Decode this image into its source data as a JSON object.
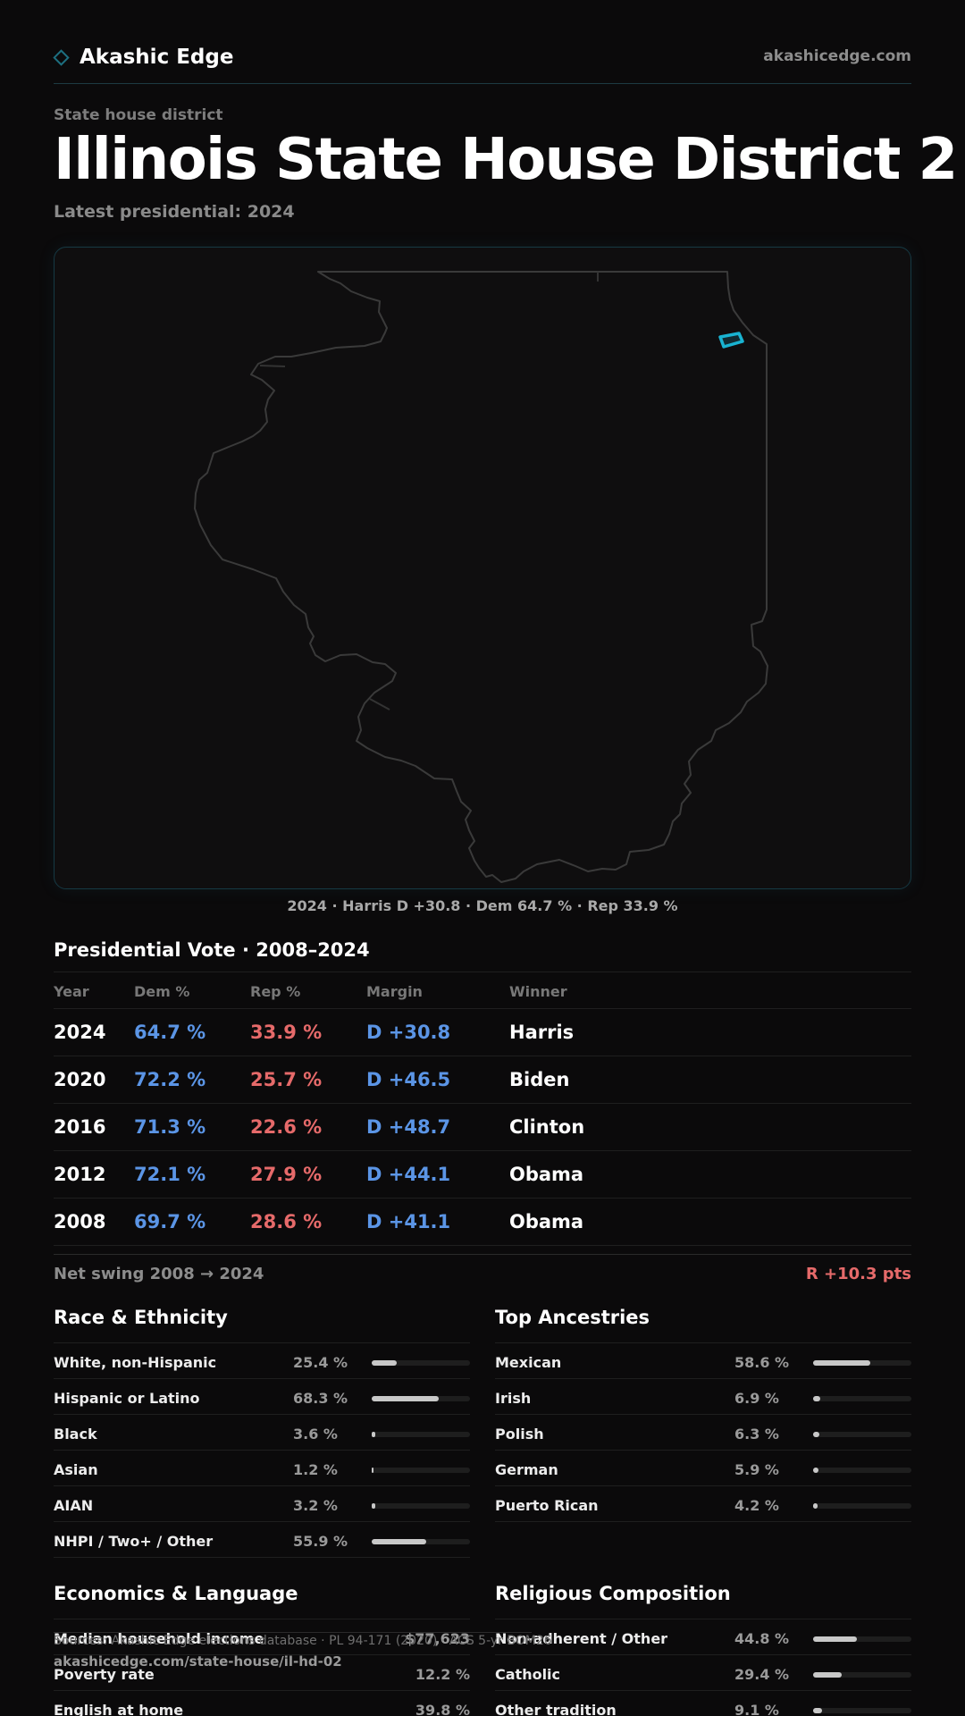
{
  "header": {
    "brand_name": "Akashic Edge",
    "site": "akashicedge.com"
  },
  "page": {
    "eyebrow": "State house district",
    "title": "Illinois State House District 2",
    "subtitle": "Latest presidential: 2024"
  },
  "map": {
    "caption": "2024 · Harris D +30.8 · Dem 64.7 % · Rep 33.9 %",
    "highlight_color": "#19b3d1"
  },
  "presidential": {
    "title": "Presidential Vote · 2008–2024",
    "columns": [
      "Year",
      "Dem %",
      "Rep %",
      "Margin",
      "Winner"
    ],
    "rows": [
      {
        "year": "2024",
        "dem": "64.7 %",
        "rep": "33.9 %",
        "margin": "D +30.8",
        "winner": "Harris"
      },
      {
        "year": "2020",
        "dem": "72.2 %",
        "rep": "25.7 %",
        "margin": "D +46.5",
        "winner": "Biden"
      },
      {
        "year": "2016",
        "dem": "71.3 %",
        "rep": "22.6 %",
        "margin": "D +48.7",
        "winner": "Clinton"
      },
      {
        "year": "2012",
        "dem": "72.1 %",
        "rep": "27.9 %",
        "margin": "D +44.1",
        "winner": "Obama"
      },
      {
        "year": "2008",
        "dem": "69.7 %",
        "rep": "28.6 %",
        "margin": "D +41.1",
        "winner": "Obama"
      }
    ],
    "swing_label": "Net swing 2008 → 2024",
    "swing_value": "R +10.3 pts"
  },
  "race": {
    "title": "Race & Ethnicity",
    "rows": [
      {
        "label": "White, non-Hispanic",
        "value": "25.4 %",
        "pct": 25.4
      },
      {
        "label": "Hispanic or Latino",
        "value": "68.3 %",
        "pct": 68.3
      },
      {
        "label": "Black",
        "value": "3.6 %",
        "pct": 3.6
      },
      {
        "label": "Asian",
        "value": "1.2 %",
        "pct": 1.2
      },
      {
        "label": "AIAN",
        "value": "3.2 %",
        "pct": 3.2
      },
      {
        "label": "NHPI / Two+ / Other",
        "value": "55.9 %",
        "pct": 55.9
      }
    ]
  },
  "ancestry": {
    "title": "Top Ancestries",
    "rows": [
      {
        "label": "Mexican",
        "value": "58.6 %",
        "pct": 58.6
      },
      {
        "label": "Irish",
        "value": "6.9 %",
        "pct": 6.9
      },
      {
        "label": "Polish",
        "value": "6.3 %",
        "pct": 6.3
      },
      {
        "label": "German",
        "value": "5.9 %",
        "pct": 5.9
      },
      {
        "label": "Puerto Rican",
        "value": "4.2 %",
        "pct": 4.2
      }
    ]
  },
  "economics": {
    "title": "Economics & Language",
    "rows": [
      {
        "label": "Median household income",
        "value": "$77,623"
      },
      {
        "label": "Poverty rate",
        "value": "12.2 %"
      },
      {
        "label": "English at home",
        "value": "39.8 %"
      }
    ]
  },
  "religion": {
    "title": "Religious Composition",
    "rows": [
      {
        "label": "Non-adherent / Other",
        "value": "44.8 %",
        "pct": 44.8
      },
      {
        "label": "Catholic",
        "value": "29.4 %",
        "pct": 29.4
      },
      {
        "label": "Other tradition",
        "value": "9.1 %",
        "pct": 9.1
      }
    ]
  },
  "footer": {
    "source": "Sources: Akashic Edge elections database · PL 94-171 (2020) · ACS 5-yr BOM26",
    "url": "akashicedge.com/state-house/il-hd-02"
  }
}
